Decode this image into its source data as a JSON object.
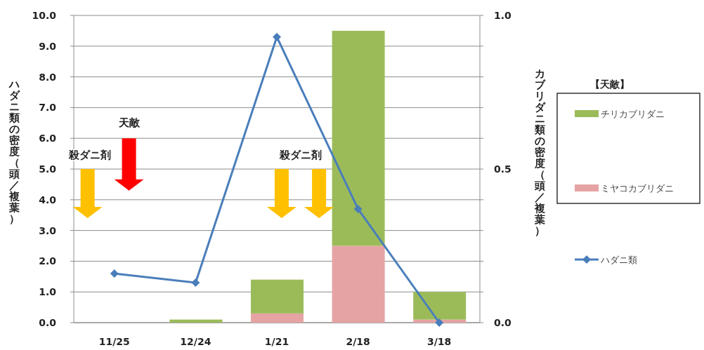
{
  "chart_data": {
    "type": "bar",
    "stacked": true,
    "categories": [
      "11/25",
      "12/24",
      "1/21",
      "2/18",
      "3/18"
    ],
    "ylabel": "ハダニ類の密度（頭／複葉）",
    "y2label": "カブリダニ類の密度（頭／複葉）",
    "legend_title": "【天敵】",
    "annotations": [
      "殺ダニ剤",
      "天敵",
      "殺ダニ剤"
    ],
    "ylim": [
      0,
      10
    ],
    "yticks": [
      {
        "value": 0,
        "label": "0.0"
      },
      {
        "value": 1,
        "label": "1.0"
      },
      {
        "value": 2,
        "label": "2.0"
      },
      {
        "value": 3,
        "label": "3.0"
      },
      {
        "value": 4,
        "label": "4.0"
      },
      {
        "value": 5,
        "label": "5.0"
      },
      {
        "value": 6,
        "label": "6.0"
      },
      {
        "value": 7,
        "label": "7.0"
      },
      {
        "value": 8,
        "label": "8.0"
      },
      {
        "value": 9,
        "label": "9.0"
      },
      {
        "value": 10,
        "label": "10.0"
      }
    ],
    "y2lim": [
      0,
      1
    ],
    "y2ticks": [
      {
        "value": 0,
        "label": "0.0"
      },
      {
        "value": 0.1,
        "label": null
      },
      {
        "value": 0.2,
        "label": null
      },
      {
        "value": 0.3,
        "label": null
      },
      {
        "value": 0.4,
        "label": null
      },
      {
        "value": 0.5,
        "label": "0.5"
      },
      {
        "value": 0.6,
        "label": null
      },
      {
        "value": 0.7,
        "label": null
      },
      {
        "value": 0.8,
        "label": null
      },
      {
        "value": 0.9,
        "label": null
      },
      {
        "value": 1,
        "label": "1.0"
      }
    ],
    "grid": "y",
    "legend": "right",
    "marker": "diamond",
    "series": [
      {
        "name": "ミヤコカブリダニ",
        "color": "#e6a3a3",
        "axis": "y2",
        "values": [
          0,
          0,
          0.03,
          0.25,
          0.01
        ]
      },
      {
        "name": "チリカブリダニ",
        "color": "#9bbb59",
        "axis": "y2",
        "values": [
          0,
          0.01,
          0.11,
          0.7,
          0.09
        ]
      },
      {
        "name": "ハダニ類",
        "type": "line",
        "color": "#4a7ebb",
        "values": [
          1.6,
          1.3,
          9.3,
          3.7,
          0.0
        ]
      }
    ]
  }
}
